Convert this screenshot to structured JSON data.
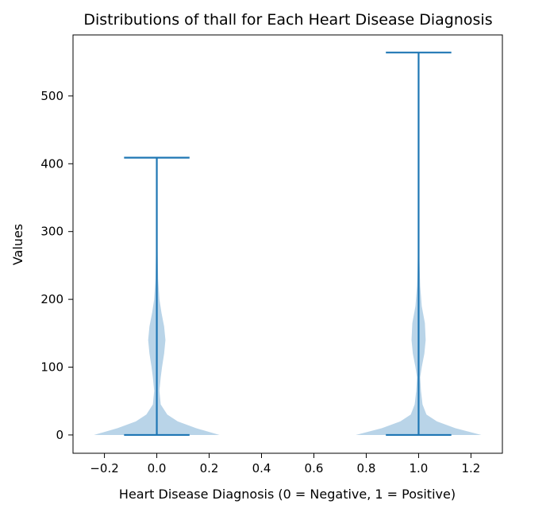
{
  "chart_data": {
    "type": "violin",
    "title": "Distributions of thall for Each Heart Disease Diagnosis",
    "xlabel": "Heart Disease Diagnosis (0 = Negative, 1 = Positive)",
    "ylabel": "Values",
    "xlim": [
      -0.32,
      1.32
    ],
    "ylim": [
      -27,
      590
    ],
    "xticks": [
      -0.2,
      0.0,
      0.2,
      0.4,
      0.6,
      0.8,
      1.0,
      1.2
    ],
    "xtick_labels": [
      "−0.2",
      "0.0",
      "0.2",
      "0.4",
      "0.6",
      "0.8",
      "1.0",
      "1.2"
    ],
    "yticks": [
      0,
      100,
      200,
      300,
      400,
      500
    ],
    "ytick_labels": [
      "0",
      "100",
      "200",
      "300",
      "400",
      "500"
    ],
    "grid": false,
    "colors": {
      "body": "#b9d4e8",
      "lines": "#1f77b4",
      "axes": "#000000"
    },
    "series": [
      {
        "position": 0,
        "min": 0,
        "max": 409,
        "profile": [
          [
            0,
            0.24
          ],
          [
            10,
            0.15
          ],
          [
            20,
            0.08
          ],
          [
            30,
            0.04
          ],
          [
            45,
            0.015
          ],
          [
            65,
            0.01
          ],
          [
            85,
            0.015
          ],
          [
            100,
            0.02
          ],
          [
            120,
            0.028
          ],
          [
            140,
            0.033
          ],
          [
            160,
            0.028
          ],
          [
            180,
            0.018
          ],
          [
            200,
            0.01
          ],
          [
            230,
            0.005
          ],
          [
            270,
            0.003
          ],
          [
            320,
            0.001
          ],
          [
            409,
            0
          ]
        ]
      },
      {
        "position": 1,
        "min": 0,
        "max": 564,
        "profile": [
          [
            0,
            0.24
          ],
          [
            10,
            0.14
          ],
          [
            20,
            0.07
          ],
          [
            30,
            0.03
          ],
          [
            45,
            0.015
          ],
          [
            65,
            0.009
          ],
          [
            85,
            0.006
          ],
          [
            100,
            0.012
          ],
          [
            120,
            0.022
          ],
          [
            140,
            0.027
          ],
          [
            165,
            0.024
          ],
          [
            190,
            0.012
          ],
          [
            220,
            0.006
          ],
          [
            260,
            0.003
          ],
          [
            300,
            0.001
          ],
          [
            564,
            0
          ]
        ]
      }
    ]
  }
}
